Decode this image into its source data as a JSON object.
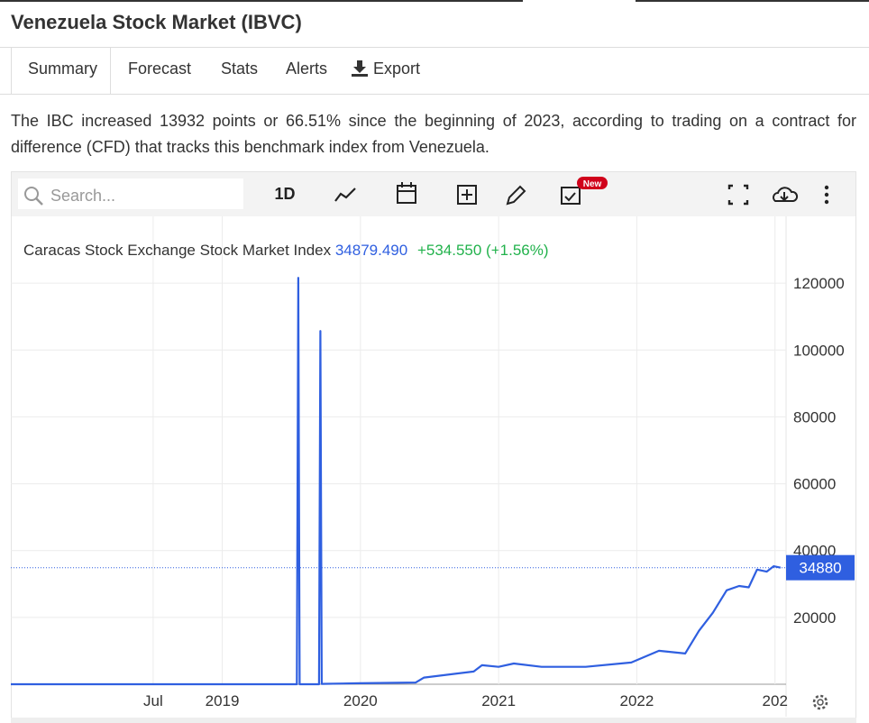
{
  "header": {
    "title": "Venezuela Stock Market (IBVC)"
  },
  "tabs": [
    "Summary",
    "Forecast",
    "Stats",
    "Alerts",
    "Export"
  ],
  "description": "The IBC increased 13932 points or 66.51% since the beginning of 2023, according to trading on a contract for difference (CFD) that tracks this benchmark index from Venezuela.",
  "toolbar": {
    "search_placeholder": "Search...",
    "interval": "1D",
    "badge": "New"
  },
  "legend": {
    "name": "Caracas Stock Exchange Stock Market Index",
    "price": "34879.490",
    "change": "+534.550 (+1.56%)"
  },
  "chart_data": {
    "type": "line",
    "series": [
      {
        "name": "Caracas Stock Exchange Stock Market Index",
        "color": "#2f5fe0",
        "x": [
          2017.47,
          2019.54,
          2019.55,
          2019.56,
          2019.7,
          2019.71,
          2019.72,
          2020.0,
          2020.4,
          2020.46,
          2020.82,
          2020.88,
          2021.0,
          2021.11,
          2021.31,
          2021.63,
          2021.96,
          2022.16,
          2022.35,
          2022.45,
          2022.55,
          2022.65,
          2022.74,
          2022.81,
          2022.87,
          2022.94,
          2022.99,
          2023.04
        ],
        "values": [
          0,
          0,
          121600,
          0,
          0,
          105700,
          100,
          300,
          500,
          2000,
          3800,
          5700,
          5200,
          6200,
          5200,
          5200,
          6500,
          10000,
          9200,
          16000,
          21400,
          28100,
          29400,
          29000,
          34300,
          33700,
          35300,
          34880
        ]
      }
    ],
    "last_value": 34880,
    "xlim": [
      2017.47,
      2023.08
    ],
    "xticks": [
      {
        "value": 2018.5,
        "label": "Jul"
      },
      2019,
      2020,
      2021,
      2022,
      {
        "value": 2023,
        "label": "202"
      }
    ],
    "ylim": [
      0,
      140000
    ],
    "yticks": [
      20000,
      40000,
      60000,
      80000,
      100000,
      120000
    ],
    "grid": true
  }
}
